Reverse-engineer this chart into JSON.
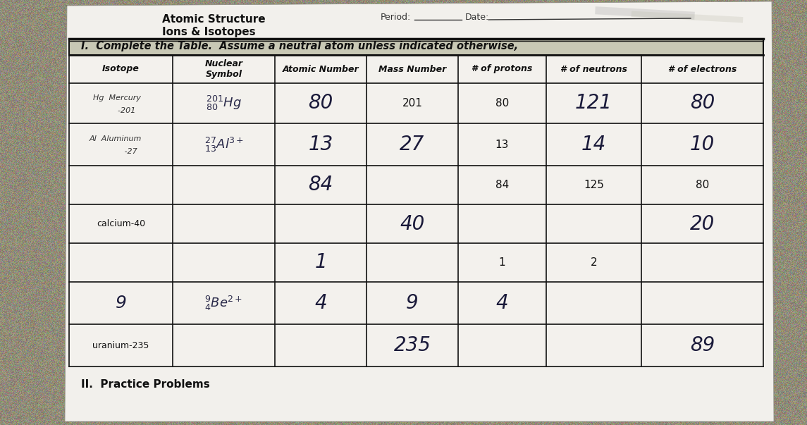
{
  "title_line1": "Atomic Structure",
  "title_line2": "Ions & Isotopes",
  "period_label": "Period:",
  "date_label": "Date:",
  "section_title": "I.  Complete the Table.  Assume a neutral atom unless indicated otherwise,",
  "col_headers": [
    "Isotope",
    "Nuclear\nSymbol",
    "Atomic Number",
    "Mass Number",
    "# of protons",
    "# of neutrons",
    "# of electrons"
  ],
  "bg_color": "#8a8a7a",
  "paper_color": "#f0eeea",
  "line_color": "#111111",
  "text_color": "#111111",
  "hw_color": "#1a1a3a",
  "section_bg": "#c8c8b8",
  "header_bg": "#e8e6e2",
  "note_italic_color": "#222222"
}
